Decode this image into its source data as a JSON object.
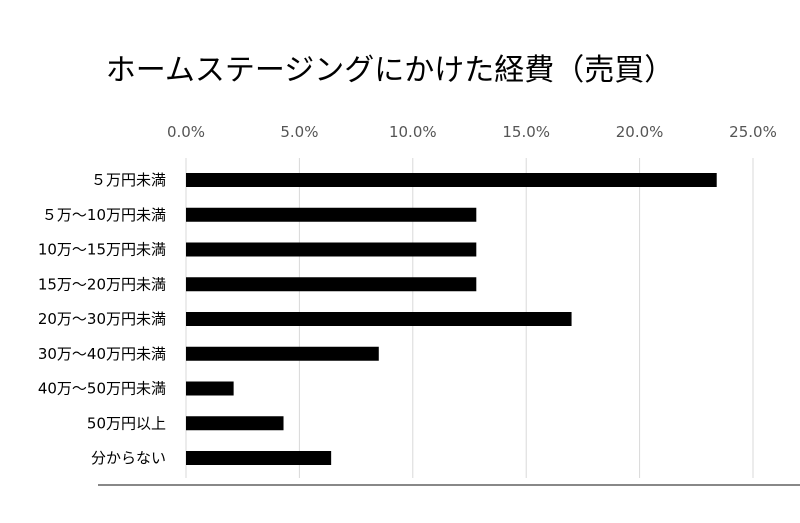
{
  "chart_data": {
    "type": "bar",
    "orientation": "horizontal",
    "title": "ホームステージングにかけた経費（売買）",
    "categories": [
      "５万円未満",
      "５万〜10万円未満",
      "10万〜15万円未満",
      "15万〜20万円未満",
      "20万〜30万円未満",
      "30万〜40万円未満",
      "40万〜50万円未満",
      "50万円以上",
      "分からない"
    ],
    "values": [
      23.4,
      12.8,
      12.8,
      12.8,
      17.0,
      8.5,
      2.1,
      4.3,
      6.4
    ],
    "value_unit": "%",
    "xlim": [
      0,
      25
    ],
    "x_ticks": [
      0,
      5,
      10,
      15,
      20,
      25
    ],
    "x_tick_labels": [
      "0.0%",
      "5.0%",
      "10.0%",
      "15.0%",
      "20.0%",
      "25.0%"
    ],
    "x_axis_position": "top",
    "grid": true,
    "legend": "none",
    "bar_color": "#000000",
    "grid_color": "#d9d9d9"
  }
}
